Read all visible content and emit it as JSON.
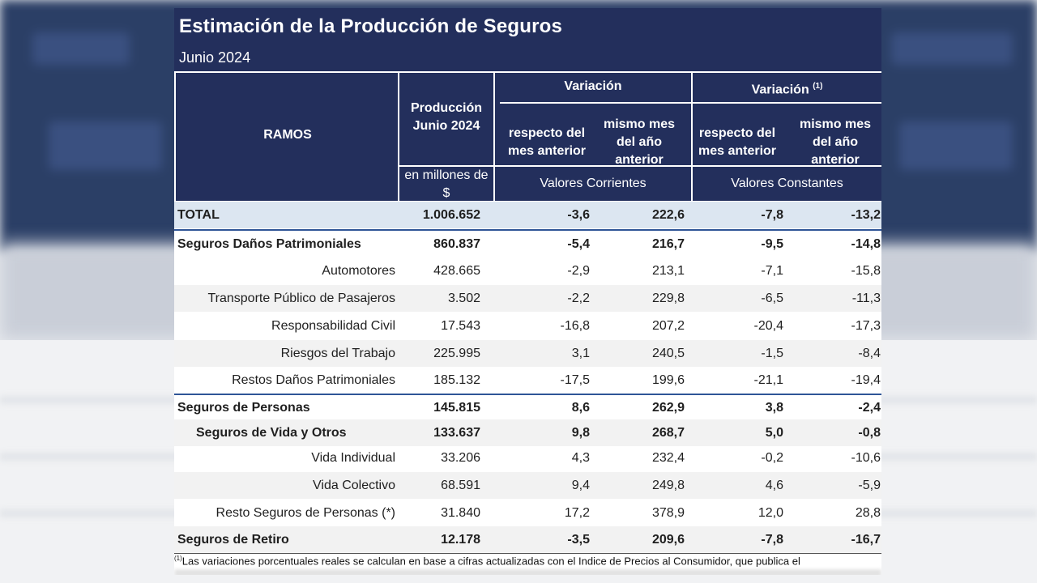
{
  "title": "Estimación de la Producción de Seguros",
  "subtitle": "Junio 2024",
  "header": {
    "ramos": "RAMOS",
    "produccion_l1": "Producción",
    "produccion_l2": "Junio 2024",
    "unidad_l1": "en millones de",
    "unidad_l2": "$",
    "variacion": "Variación",
    "variacion2": "Variación",
    "variacion2_sup": "(1)",
    "respecto_l1": "respecto del",
    "respecto_l2": "mes anterior",
    "mismo_l1": "mismo mes",
    "mismo_l2": "del año",
    "mismo_l3": "anterior",
    "corrientes": "Valores Corrientes",
    "constantes": "Valores Constantes"
  },
  "rows": [
    {
      "name": "TOTAL",
      "prod": "1.006.652",
      "v1": "-3,6",
      "v2": "222,6",
      "v3": "-7,8",
      "v4": "-13,2"
    },
    {
      "name": "Seguros Daños Patrimoniales",
      "prod": "860.837",
      "v1": "-5,4",
      "v2": "216,7",
      "v3": "-9,5",
      "v4": "-14,8"
    },
    {
      "name": "Automotores",
      "prod": "428.665",
      "v1": "-2,9",
      "v2": "213,1",
      "v3": "-7,1",
      "v4": "-15,8"
    },
    {
      "name": "Transporte Público de Pasajeros",
      "prod": "3.502",
      "v1": "-2,2",
      "v2": "229,8",
      "v3": "-6,5",
      "v4": "-11,3"
    },
    {
      "name": "Responsabilidad Civil",
      "prod": "17.543",
      "v1": "-16,8",
      "v2": "207,2",
      "v3": "-20,4",
      "v4": "-17,3"
    },
    {
      "name": "Riesgos del Trabajo",
      "prod": "225.995",
      "v1": "3,1",
      "v2": "240,5",
      "v3": "-1,5",
      "v4": "-8,4"
    },
    {
      "name": "Restos Daños Patrimoniales",
      "prod": "185.132",
      "v1": "-17,5",
      "v2": "199,6",
      "v3": "-21,1",
      "v4": "-19,4"
    },
    {
      "name": "Seguros de Personas",
      "prod": "145.815",
      "v1": "8,6",
      "v2": "262,9",
      "v3": "3,8",
      "v4": "-2,4"
    },
    {
      "name": "Seguros de Vida y Otros",
      "prod": "133.637",
      "v1": "9,8",
      "v2": "268,7",
      "v3": "5,0",
      "v4": "-0,8"
    },
    {
      "name": "Vida Individual",
      "prod": "33.206",
      "v1": "4,3",
      "v2": "232,4",
      "v3": "-0,2",
      "v4": "-10,6"
    },
    {
      "name": "Vida Colectivo",
      "prod": "68.591",
      "v1": "9,4",
      "v2": "249,8",
      "v3": "4,6",
      "v4": "-5,9"
    },
    {
      "name": "Resto Seguros de Personas (*)",
      "prod": "31.840",
      "v1": "17,2",
      "v2": "378,9",
      "v3": "12,0",
      "v4": "28,8"
    },
    {
      "name": "Seguros de Retiro",
      "prod": "12.178",
      "v1": "-3,5",
      "v2": "209,6",
      "v3": "-7,8",
      "v4": "-16,7"
    }
  ],
  "footnote_mark": "(1)",
  "footnote": "Las variaciones porcentuales reales se calculan en base a cifras actualizadas con  el Indice de Precios al Consumidor, que publica el"
}
